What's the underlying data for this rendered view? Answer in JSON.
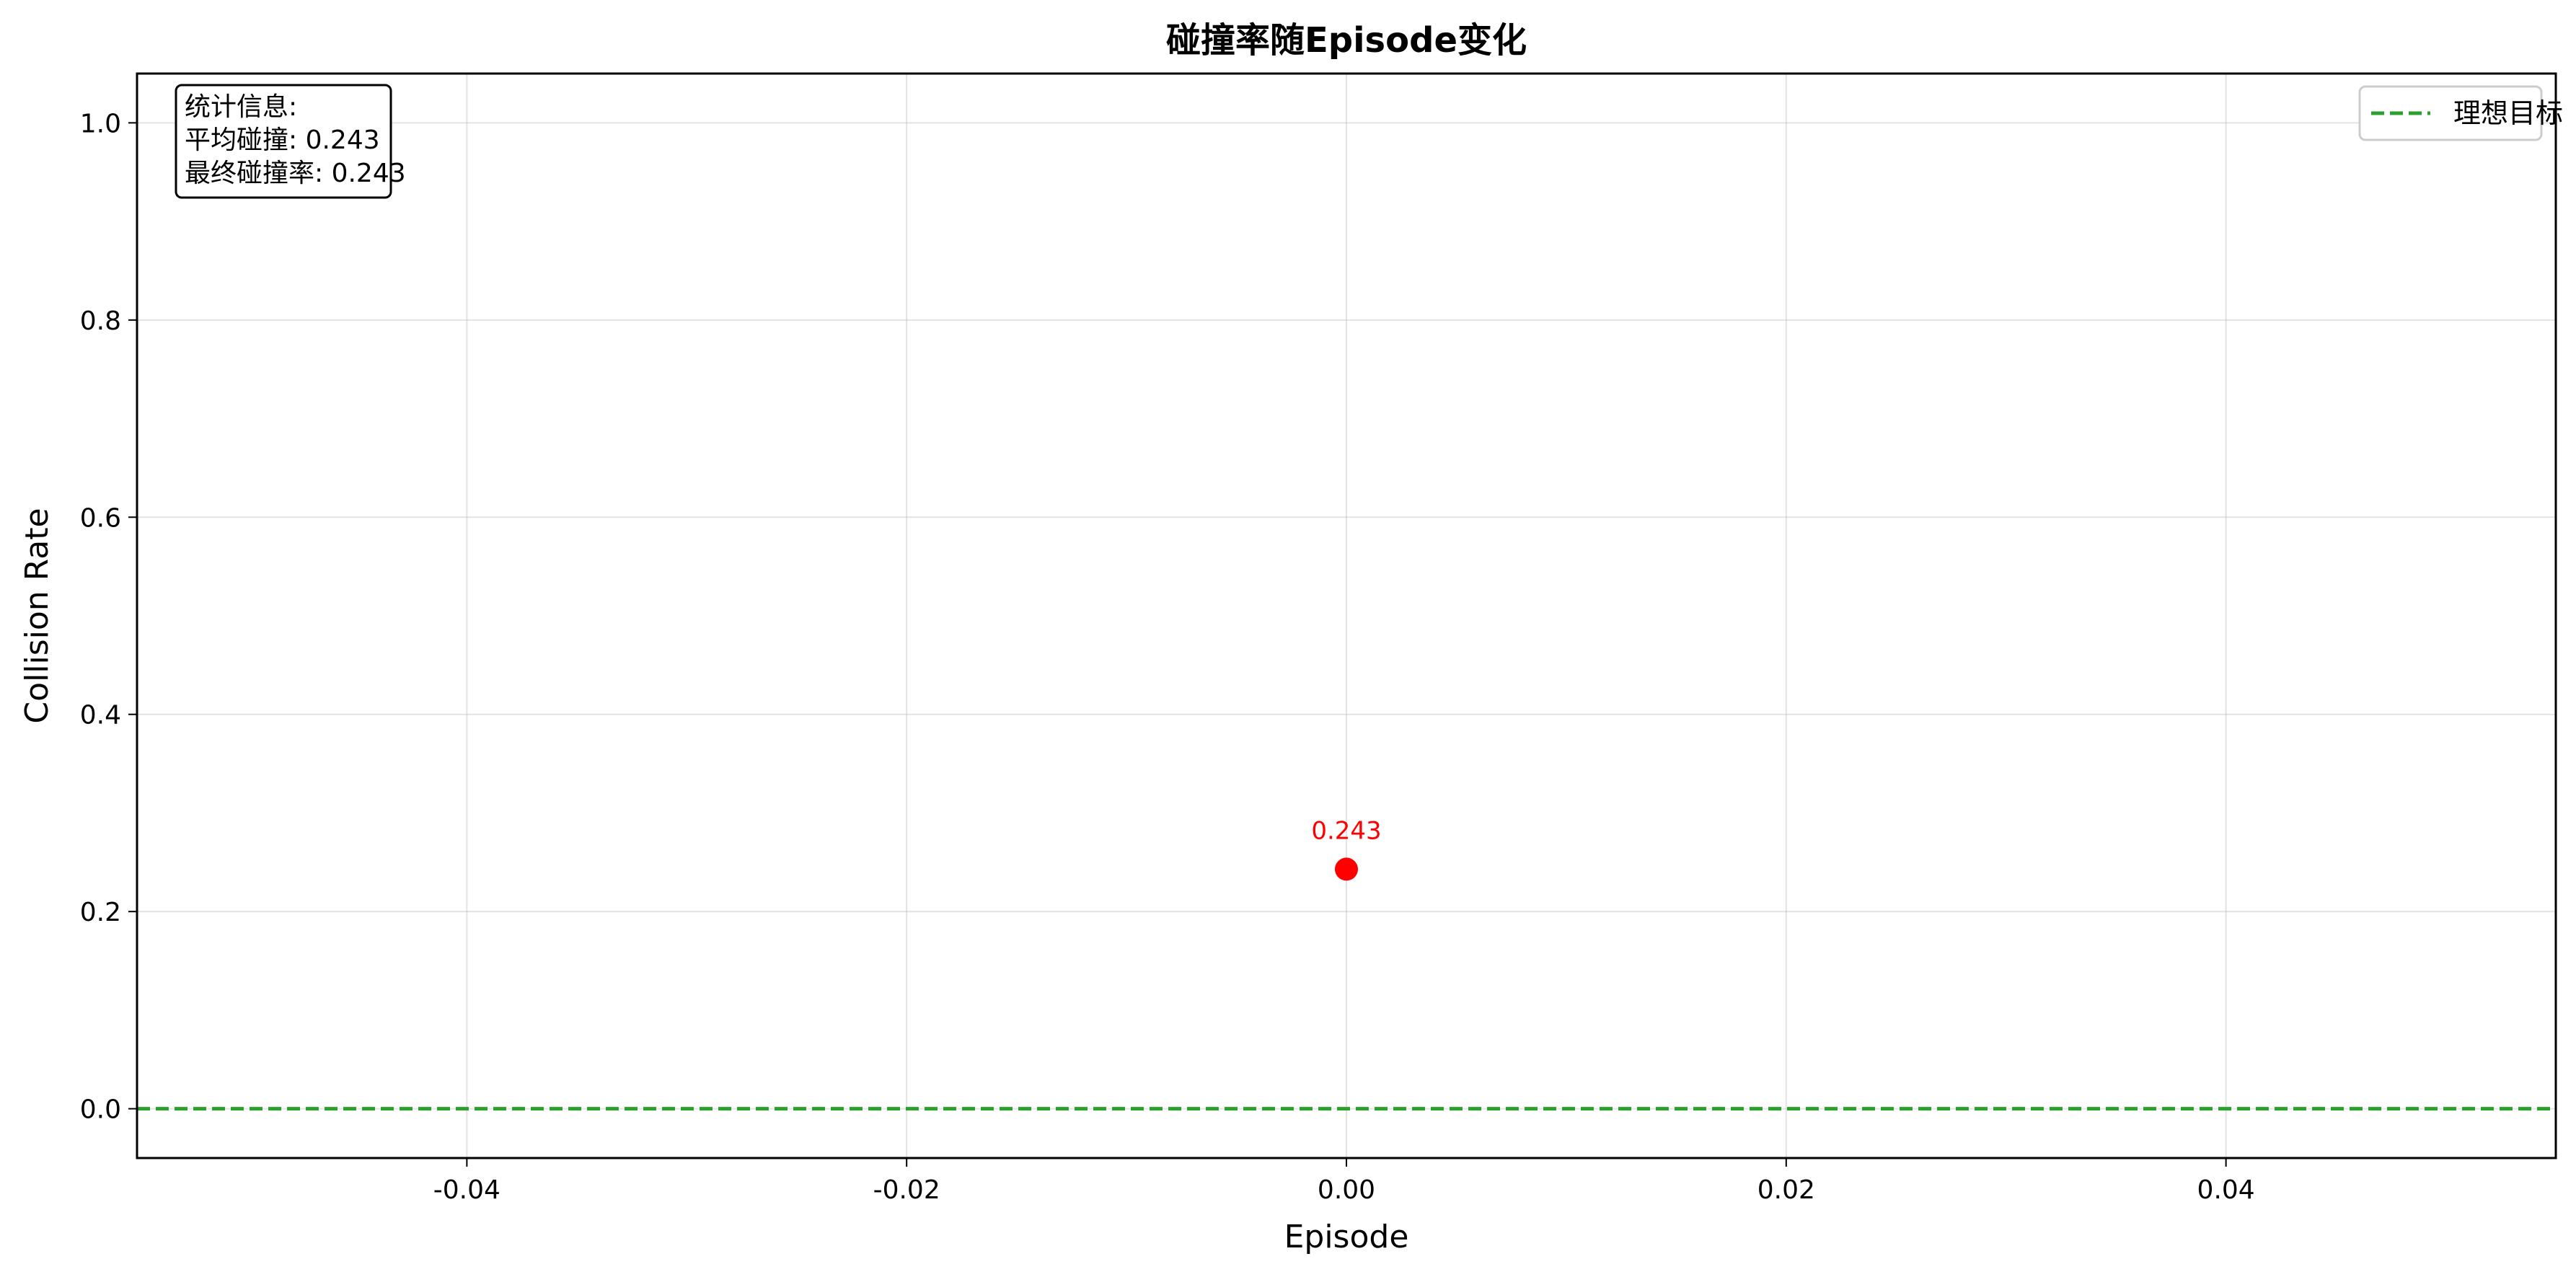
{
  "chart_data": {
    "type": "scatter",
    "title": "碰撞率随Episode变化",
    "xlabel": "Episode",
    "ylabel": "Collision Rate",
    "xlim": [
      -0.055,
      0.055
    ],
    "ylim": [
      -0.05,
      1.05
    ],
    "xticks": [
      -0.04,
      -0.02,
      0.0,
      0.02,
      0.04
    ],
    "xtick_labels": [
      "-0.04",
      "-0.02",
      "0.00",
      "0.02",
      "0.04"
    ],
    "yticks": [
      0.0,
      0.2,
      0.4,
      0.6,
      0.8,
      1.0
    ],
    "ytick_labels": [
      "0.0",
      "0.2",
      "0.4",
      "0.6",
      "0.8",
      "1.0"
    ],
    "grid": true,
    "series": [
      {
        "points": [
          {
            "x": 0.0,
            "y": 0.243,
            "label": "0.243"
          }
        ],
        "color": "#ff0000"
      }
    ],
    "reference_line": {
      "y": 0.0,
      "name": "理想目标",
      "style": "dashed",
      "color": "#2ca02c"
    },
    "legend": {
      "placement": "top-right",
      "entries": [
        "理想目标"
      ]
    },
    "stats_box": {
      "placement": "top-left",
      "lines": [
        "统计信息:",
        "平均碰撞: 0.243",
        "最终碰撞率: 0.243"
      ]
    }
  }
}
